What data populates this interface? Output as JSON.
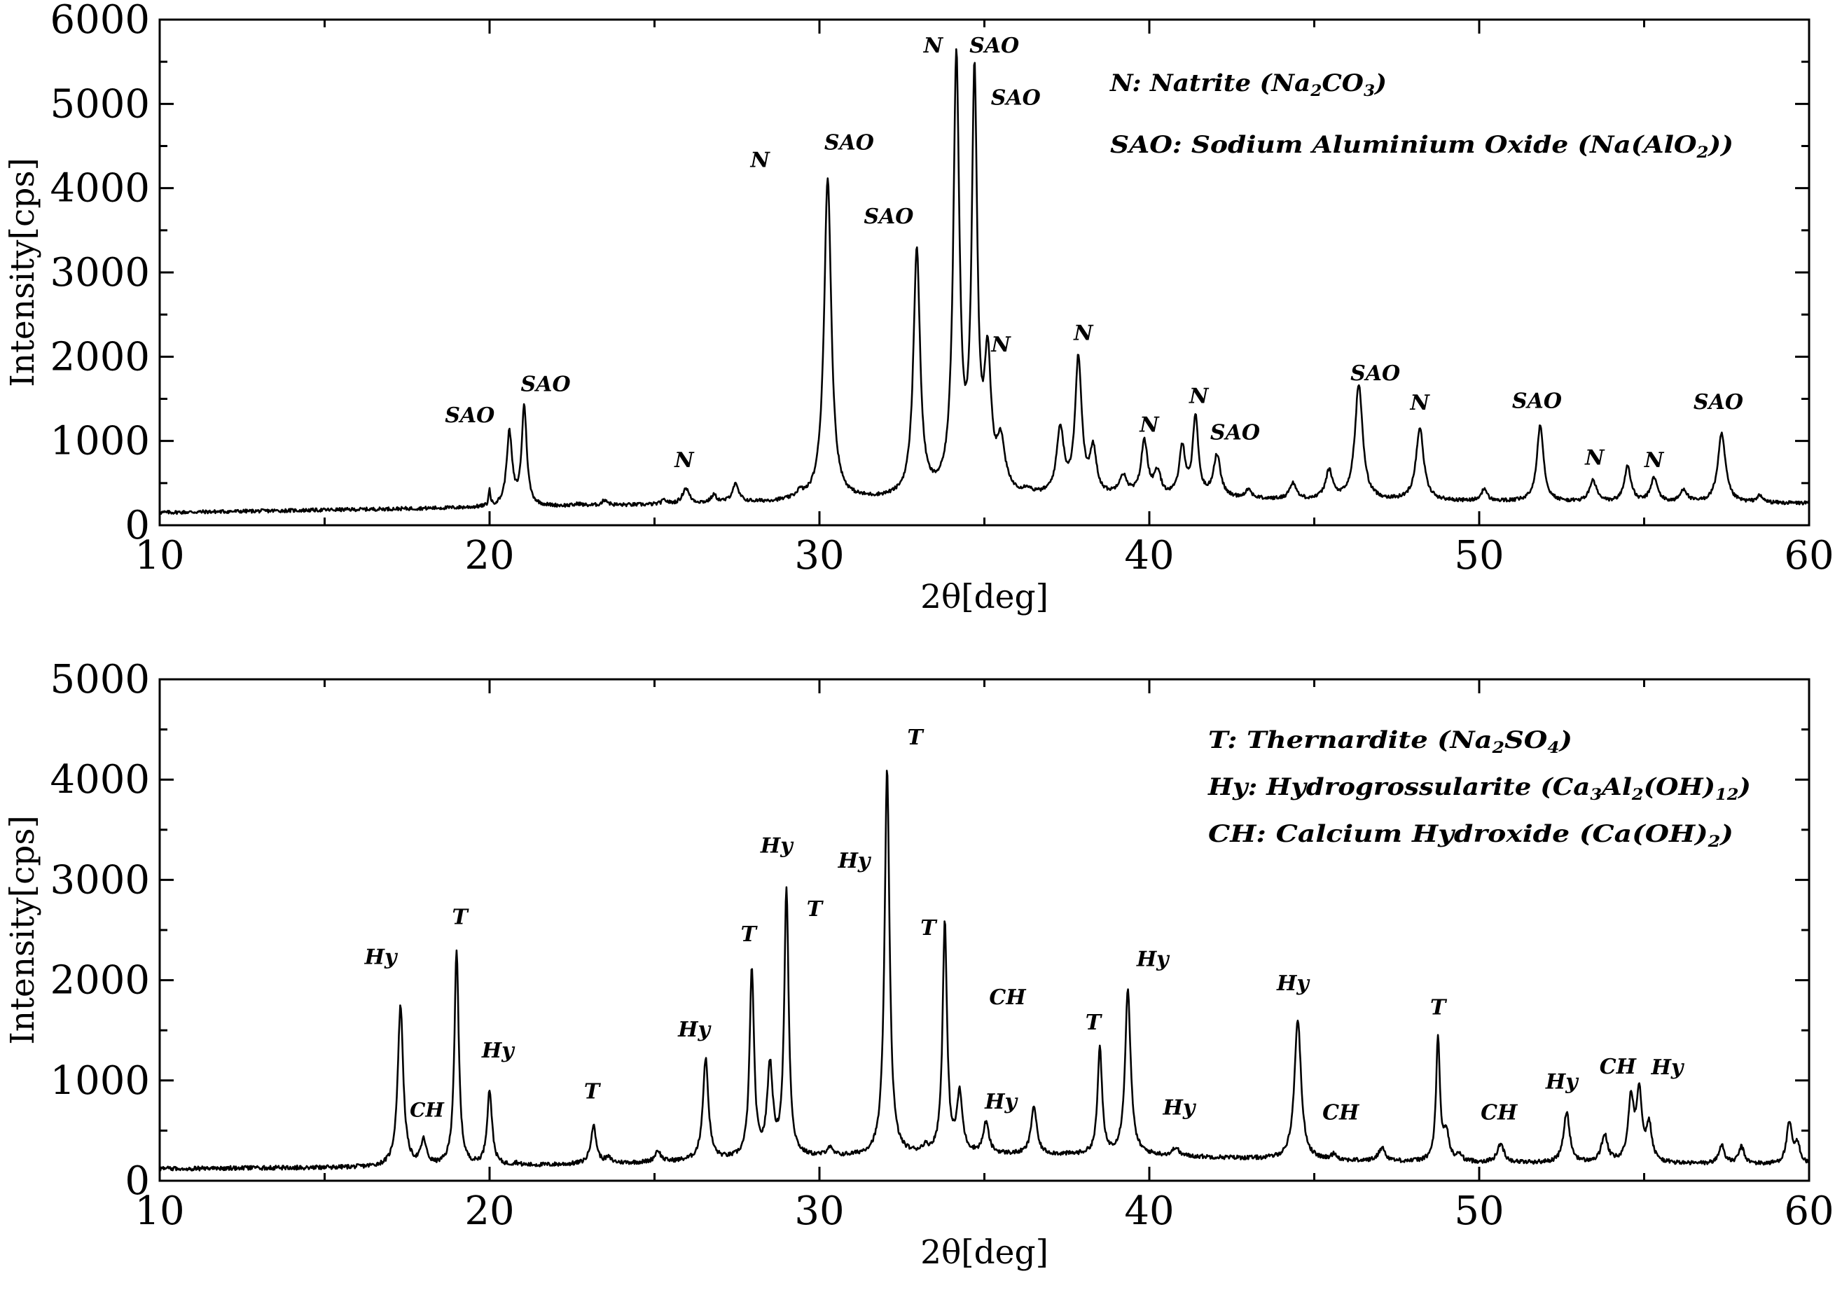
{
  "chart_data": [
    {
      "type": "line",
      "xlabel": "2θ[deg]",
      "ylabel": "Intensity[cps]",
      "xlim": [
        10,
        60
      ],
      "ylim": [
        0,
        6000
      ],
      "x_ticks": [
        "10",
        "20",
        "30",
        "40",
        "50",
        "60"
      ],
      "y_ticks": [
        "0",
        "1000",
        "2000",
        "3000",
        "4000",
        "5000",
        "6000"
      ],
      "baseline": [
        [
          10,
          150
        ],
        [
          20,
          210
        ],
        [
          25,
          240
        ],
        [
          30,
          280
        ],
        [
          35,
          320
        ],
        [
          40,
          320
        ],
        [
          45,
          290
        ],
        [
          50,
          280
        ],
        [
          55,
          260
        ],
        [
          60,
          260
        ]
      ],
      "peaks": [
        {
          "x": 20.0,
          "y": 420,
          "w": 0.03
        },
        {
          "x": 20.6,
          "y": 1120,
          "w": 0.1
        },
        {
          "x": 21.05,
          "y": 1450,
          "w": 0.09
        },
        {
          "x": 22.7,
          "y": 250,
          "w": 0.1
        },
        {
          "x": 23.5,
          "y": 300,
          "w": 0.1
        },
        {
          "x": 25.3,
          "y": 290,
          "w": 0.1
        },
        {
          "x": 25.95,
          "y": 440,
          "w": 0.12
        },
        {
          "x": 26.8,
          "y": 350,
          "w": 0.1
        },
        {
          "x": 27.45,
          "y": 480,
          "w": 0.12
        },
        {
          "x": 29.4,
          "y": 350,
          "w": 0.12
        },
        {
          "x": 30.25,
          "y": 4280,
          "w": 0.13
        },
        {
          "x": 32.95,
          "y": 3360,
          "w": 0.12
        },
        {
          "x": 34.15,
          "y": 5660,
          "w": 0.11
        },
        {
          "x": 34.7,
          "y": 5350,
          "w": 0.1
        },
        {
          "x": 35.1,
          "y": 1880,
          "w": 0.12
        },
        {
          "x": 35.5,
          "y": 900,
          "w": 0.15
        },
        {
          "x": 36.3,
          "y": 380,
          "w": 0.12
        },
        {
          "x": 37.3,
          "y": 1130,
          "w": 0.13
        },
        {
          "x": 37.85,
          "y": 2000,
          "w": 0.12
        },
        {
          "x": 38.3,
          "y": 860,
          "w": 0.12
        },
        {
          "x": 39.2,
          "y": 560,
          "w": 0.15
        },
        {
          "x": 39.85,
          "y": 990,
          "w": 0.12
        },
        {
          "x": 40.25,
          "y": 600,
          "w": 0.12
        },
        {
          "x": 41.0,
          "y": 920,
          "w": 0.11
        },
        {
          "x": 41.4,
          "y": 1300,
          "w": 0.1
        },
        {
          "x": 42.05,
          "y": 830,
          "w": 0.13
        },
        {
          "x": 43.0,
          "y": 410,
          "w": 0.12
        },
        {
          "x": 44.35,
          "y": 500,
          "w": 0.12
        },
        {
          "x": 45.45,
          "y": 640,
          "w": 0.13
        },
        {
          "x": 46.35,
          "y": 1720,
          "w": 0.14
        },
        {
          "x": 48.2,
          "y": 1180,
          "w": 0.14
        },
        {
          "x": 50.15,
          "y": 430,
          "w": 0.1
        },
        {
          "x": 51.85,
          "y": 1230,
          "w": 0.12
        },
        {
          "x": 53.45,
          "y": 530,
          "w": 0.13
        },
        {
          "x": 54.5,
          "y": 710,
          "w": 0.12
        },
        {
          "x": 55.3,
          "y": 560,
          "w": 0.13
        },
        {
          "x": 56.2,
          "y": 420,
          "w": 0.12
        },
        {
          "x": 57.35,
          "y": 1110,
          "w": 0.14
        },
        {
          "x": 58.5,
          "y": 340,
          "w": 0.12
        }
      ],
      "annotations": [
        {
          "text": "SAO",
          "x": 19.4,
          "y": 1220
        },
        {
          "text": "SAO",
          "x": 21.7,
          "y": 1590
        },
        {
          "text": "N",
          "x": 25.9,
          "y": 690
        },
        {
          "text": "N",
          "x": 28.2,
          "y": 4250
        },
        {
          "text": "SAO",
          "x": 30.9,
          "y": 4460
        },
        {
          "text": "SAO",
          "x": 32.1,
          "y": 3580
        },
        {
          "text": "N",
          "x": 33.45,
          "y": 5610
        },
        {
          "text": "SAO",
          "x": 35.3,
          "y": 5610
        },
        {
          "text": "SAO",
          "x": 35.95,
          "y": 4990
        },
        {
          "text": "N",
          "x": 35.5,
          "y": 2060
        },
        {
          "text": "N",
          "x": 38.0,
          "y": 2200
        },
        {
          "text": "N",
          "x": 40.0,
          "y": 1110
        },
        {
          "text": "N",
          "x": 41.5,
          "y": 1450
        },
        {
          "text": "SAO",
          "x": 42.6,
          "y": 1020
        },
        {
          "text": "SAO",
          "x": 46.85,
          "y": 1720
        },
        {
          "text": "N",
          "x": 48.2,
          "y": 1370
        },
        {
          "text": "SAO",
          "x": 51.75,
          "y": 1390
        },
        {
          "text": "N",
          "x": 53.5,
          "y": 720
        },
        {
          "text": "N",
          "x": 55.3,
          "y": 690
        },
        {
          "text": "SAO",
          "x": 57.25,
          "y": 1380
        }
      ],
      "legend": [
        [
          {
            "t": "N: Natrite (Na"
          },
          {
            "t": "2",
            "sub": true
          },
          {
            "t": "CO"
          },
          {
            "t": "3",
            "sub": true
          },
          {
            "t": ")"
          }
        ],
        [
          {
            "t": "SAO: Sodium Aluminium Oxide (Na(AlO"
          },
          {
            "t": "2",
            "sub": true
          },
          {
            "t": "))"
          }
        ]
      ],
      "legend_position": "top-right"
    },
    {
      "type": "line",
      "xlabel": "2θ[deg]",
      "ylabel": "Intensity[cps]",
      "xlim": [
        10,
        60
      ],
      "ylim": [
        0,
        5000
      ],
      "x_ticks": [
        "10",
        "20",
        "30",
        "40",
        "50",
        "60"
      ],
      "y_ticks": [
        "0",
        "1000",
        "2000",
        "3000",
        "4000",
        "5000"
      ],
      "baseline": [
        [
          10,
          120
        ],
        [
          20,
          140
        ],
        [
          25,
          180
        ],
        [
          30,
          230
        ],
        [
          35,
          260
        ],
        [
          40,
          250
        ],
        [
          45,
          200
        ],
        [
          50,
          180
        ],
        [
          55,
          170
        ],
        [
          60,
          160
        ]
      ],
      "peaks": [
        {
          "x": 17.3,
          "y": 1810,
          "w": 0.1
        },
        {
          "x": 18.0,
          "y": 390,
          "w": 0.1
        },
        {
          "x": 19.0,
          "y": 2360,
          "w": 0.08
        },
        {
          "x": 20.0,
          "y": 920,
          "w": 0.09
        },
        {
          "x": 20.8,
          "y": 170,
          "w": 0.1
        },
        {
          "x": 23.15,
          "y": 560,
          "w": 0.1
        },
        {
          "x": 23.6,
          "y": 220,
          "w": 0.1
        },
        {
          "x": 25.1,
          "y": 300,
          "w": 0.1
        },
        {
          "x": 26.55,
          "y": 1250,
          "w": 0.1
        },
        {
          "x": 27.95,
          "y": 2170,
          "w": 0.08
        },
        {
          "x": 28.5,
          "y": 1150,
          "w": 0.1
        },
        {
          "x": 29.0,
          "y": 2990,
          "w": 0.08
        },
        {
          "x": 30.3,
          "y": 320,
          "w": 0.1
        },
        {
          "x": 32.05,
          "y": 4250,
          "w": 0.09
        },
        {
          "x": 33.2,
          "y": 310,
          "w": 0.12
        },
        {
          "x": 33.8,
          "y": 2650,
          "w": 0.08
        },
        {
          "x": 34.25,
          "y": 860,
          "w": 0.1
        },
        {
          "x": 35.05,
          "y": 580,
          "w": 0.1
        },
        {
          "x": 36.5,
          "y": 760,
          "w": 0.1
        },
        {
          "x": 38.5,
          "y": 1370,
          "w": 0.08
        },
        {
          "x": 39.35,
          "y": 1970,
          "w": 0.1
        },
        {
          "x": 40.8,
          "y": 330,
          "w": 0.1
        },
        {
          "x": 44.5,
          "y": 1670,
          "w": 0.12
        },
        {
          "x": 45.6,
          "y": 260,
          "w": 0.1
        },
        {
          "x": 47.05,
          "y": 330,
          "w": 0.12
        },
        {
          "x": 48.75,
          "y": 1450,
          "w": 0.07
        },
        {
          "x": 49.0,
          "y": 470,
          "w": 0.1
        },
        {
          "x": 49.4,
          "y": 250,
          "w": 0.1
        },
        {
          "x": 50.65,
          "y": 370,
          "w": 0.12
        },
        {
          "x": 52.65,
          "y": 700,
          "w": 0.11
        },
        {
          "x": 53.8,
          "y": 460,
          "w": 0.11
        },
        {
          "x": 54.6,
          "y": 820,
          "w": 0.1
        },
        {
          "x": 54.85,
          "y": 880,
          "w": 0.1
        },
        {
          "x": 55.15,
          "y": 540,
          "w": 0.1
        },
        {
          "x": 57.35,
          "y": 360,
          "w": 0.1
        },
        {
          "x": 57.95,
          "y": 340,
          "w": 0.1
        },
        {
          "x": 59.4,
          "y": 580,
          "w": 0.1
        },
        {
          "x": 59.65,
          "y": 350,
          "w": 0.1
        }
      ],
      "annotations": [
        {
          "text": "Hy",
          "x": 16.7,
          "y": 2160
        },
        {
          "text": "CH",
          "x": 18.1,
          "y": 640
        },
        {
          "text": "T",
          "x": 19.1,
          "y": 2560
        },
        {
          "text": "Hy",
          "x": 20.25,
          "y": 1230
        },
        {
          "text": "T",
          "x": 23.1,
          "y": 820
        },
        {
          "text": "Hy",
          "x": 26.2,
          "y": 1440
        },
        {
          "text": "T",
          "x": 27.85,
          "y": 2390
        },
        {
          "text": "Hy",
          "x": 28.7,
          "y": 3270
        },
        {
          "text": "T",
          "x": 29.85,
          "y": 2640
        },
        {
          "text": "Hy",
          "x": 31.05,
          "y": 3120
        },
        {
          "text": "T",
          "x": 32.9,
          "y": 4350
        },
        {
          "text": "T",
          "x": 33.3,
          "y": 2450
        },
        {
          "text": "CH",
          "x": 35.7,
          "y": 1760
        },
        {
          "text": "Hy",
          "x": 35.5,
          "y": 720
        },
        {
          "text": "T",
          "x": 38.3,
          "y": 1510
        },
        {
          "text": "Hy",
          "x": 40.1,
          "y": 2140
        },
        {
          "text": "Hy",
          "x": 40.9,
          "y": 660
        },
        {
          "text": "Hy",
          "x": 44.35,
          "y": 1900
        },
        {
          "text": "CH",
          "x": 45.8,
          "y": 610
        },
        {
          "text": "T",
          "x": 48.75,
          "y": 1660
        },
        {
          "text": "CH",
          "x": 50.6,
          "y": 610
        },
        {
          "text": "Hy",
          "x": 52.5,
          "y": 920
        },
        {
          "text": "CH",
          "x": 54.2,
          "y": 1070
        },
        {
          "text": "Hy",
          "x": 55.7,
          "y": 1060
        }
      ],
      "legend": [
        [
          {
            "t": "T: Thernardite (Na"
          },
          {
            "t": "2",
            "sub": true
          },
          {
            "t": "SO"
          },
          {
            "t": "4",
            "sub": true
          },
          {
            "t": ")"
          }
        ],
        [
          {
            "t": "Hy: Hydrogrossularite (Ca"
          },
          {
            "t": "3",
            "sub": true
          },
          {
            "t": "Al"
          },
          {
            "t": "2",
            "sub": true
          },
          {
            "t": "(OH)"
          },
          {
            "t": "12",
            "sub": true
          },
          {
            "t": ")"
          }
        ],
        [
          {
            "t": "CH: Calcium Hydroxide (Ca(OH)"
          },
          {
            "t": "2",
            "sub": true
          },
          {
            "t": ")"
          }
        ]
      ],
      "legend_position": "top-right"
    }
  ]
}
